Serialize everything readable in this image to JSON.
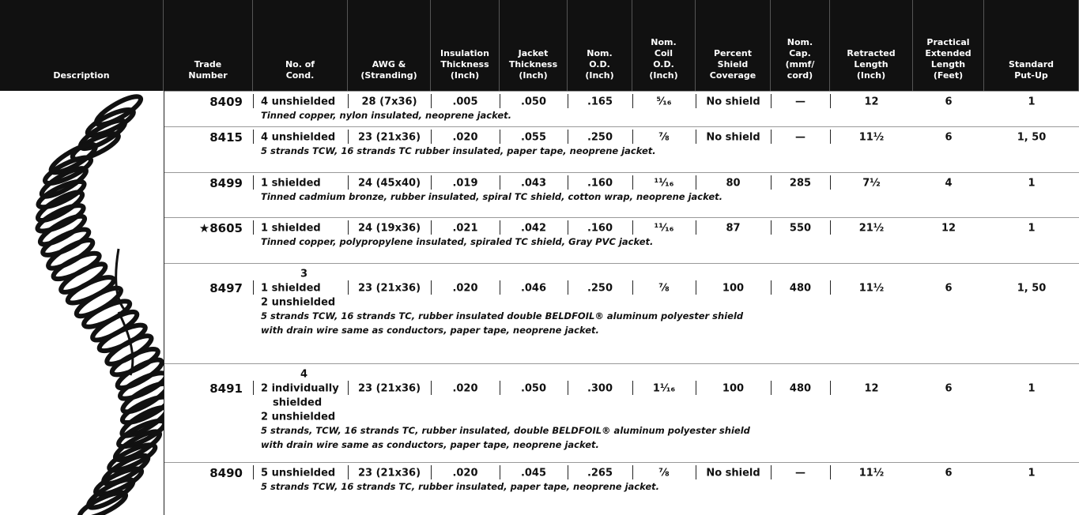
{
  "header": {
    "columns": [
      [
        "Description"
      ],
      [
        "Trade",
        "Number"
      ],
      [
        "No. of",
        "Cond."
      ],
      [
        "AWG &",
        "(Stranding)"
      ],
      [
        "Insulation",
        "Thickness",
        "(Inch)"
      ],
      [
        "Jacket",
        "Thickness",
        "(Inch)"
      ],
      [
        "Nom.",
        "O.D.",
        "(Inch)"
      ],
      [
        "Nom.",
        "Coil",
        "O.D.",
        "(Inch)"
      ],
      [
        "Percent",
        "Shield",
        "Coverage"
      ],
      [
        "Nom.",
        "Cap.",
        "(mmf/",
        "cord)"
      ],
      [
        "Retracted",
        "Length",
        "(Inch)"
      ],
      [
        "Practical",
        "Extended",
        "Length",
        "(Feet)"
      ],
      [
        "Standard",
        "Put-Up"
      ]
    ]
  },
  "rows": [
    {
      "trade": "8409",
      "cond": [
        "4 unshielded"
      ],
      "values": [
        "28 (7x36)",
        ".005",
        ".050",
        ".165",
        "⁵⁄₁₆",
        "No shield",
        "—",
        "12",
        "6",
        "1"
      ],
      "note": [
        "Tinned copper, nylon insulated, neoprene jacket."
      ]
    },
    {
      "trade": "8415",
      "cond": [
        "4 unshielded"
      ],
      "values": [
        "23 (21x36)",
        ".020",
        ".055",
        ".250",
        "⅞",
        "No shield",
        "—",
        "11½",
        "6",
        "1, 50"
      ],
      "note": [
        "5 strands TCW, 16 strands TC rubber insulated, paper tape, neoprene jacket."
      ]
    },
    {
      "trade": "8499",
      "cond": [
        "1 shielded"
      ],
      "values": [
        "24 (45x40)",
        ".019",
        ".043",
        ".160",
        "¹¹⁄₁₆",
        "80",
        "285",
        "7½",
        "4",
        "1"
      ],
      "note": [
        "Tinned cadmium bronze, rubber insulated, spiral TC shield, cotton wrap, neoprene jacket."
      ]
    },
    {
      "trade": "★8605",
      "cond": [
        "1 shielded"
      ],
      "values": [
        "24 (19x36)",
        ".021",
        ".042",
        ".160",
        "¹¹⁄₁₆",
        "87",
        "550",
        "21½",
        "12",
        "1"
      ],
      "note": [
        "Tinned copper, polypropylene insulated, spiraled TC shield, Gray PVC jacket."
      ]
    },
    {
      "trade": "8497",
      "cond": [
        "3",
        "1 shielded",
        "2 unshielded"
      ],
      "values": [
        "23 (21x36)",
        ".020",
        ".046",
        ".250",
        "⅞",
        "100",
        "480",
        "11½",
        "6",
        "1, 50"
      ],
      "note": [
        "5 strands TCW, 16 strands TC, rubber insulated double BELDFOIL® aluminum polyester shield",
        "with drain wire same as conductors, paper tape, neoprene jacket."
      ]
    },
    {
      "trade": "8491",
      "cond": [
        "4",
        "2 individually",
        "shielded",
        "2 unshielded"
      ],
      "values": [
        "23 (21x36)",
        ".020",
        ".050",
        ".300",
        "1¹⁄₁₆",
        "100",
        "480",
        "12",
        "6",
        "1"
      ],
      "note": [
        "5 strands, TCW, 16 strands TC, rubber insulated, double BELDFOIL® aluminum polyester shield",
        "with drain wire same as conductors, paper tape, neoprene jacket."
      ]
    },
    {
      "trade": "8490",
      "cond": [
        "5 unshielded"
      ],
      "values": [
        "23 (21x36)",
        ".020",
        ".045",
        ".265",
        "⅞",
        "No shield",
        "—",
        "11½",
        "6",
        "1"
      ],
      "note": [
        "5 strands TCW, 16 strands TC, rubber insulated, paper tape, neoprene jacket."
      ]
    }
  ]
}
